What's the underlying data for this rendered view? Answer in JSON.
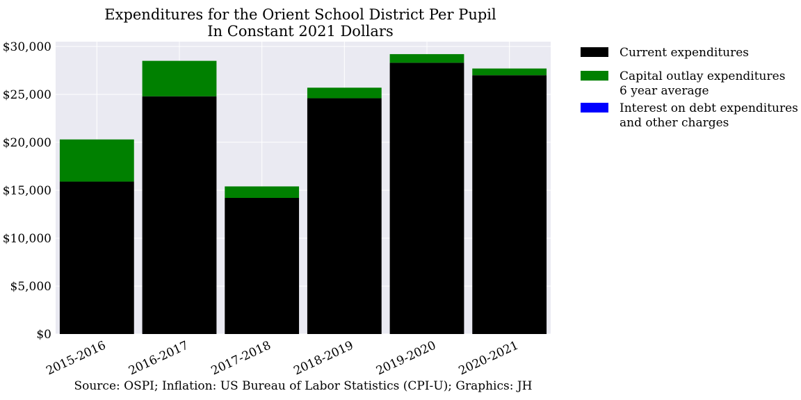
{
  "chart_data": {
    "type": "bar",
    "stacked": true,
    "title_lines": [
      "Expenditures for the Orient School District Per Pupil",
      "In Constant 2021 Dollars"
    ],
    "categories": [
      "2015-2016",
      "2016-2017",
      "2017-2018",
      "2018-2019",
      "2019-2020",
      "2020-2021"
    ],
    "series": [
      {
        "name": "Current expenditures",
        "color": "#000000",
        "values": [
          15900,
          24800,
          14200,
          24600,
          28300,
          27000
        ]
      },
      {
        "name": "Capital outlay expenditures\n6 year average",
        "color": "#008000",
        "values": [
          4400,
          3700,
          1200,
          1100,
          900,
          700
        ]
      },
      {
        "name": "Interest on debt expenditures\nand other charges",
        "color": "#0000ff",
        "values": [
          0,
          0,
          0,
          0,
          0,
          0
        ]
      }
    ],
    "ylim": [
      0,
      30500
    ],
    "yticks": [
      0,
      5000,
      10000,
      15000,
      20000,
      25000,
      30000
    ],
    "ytick_labels": [
      "$0",
      "$5,000",
      "$10,000",
      "$15,000",
      "$20,000",
      "$25,000",
      "$30,000"
    ],
    "grid": true,
    "legend_placement": "outside-right",
    "background_color": "#eaeaf2",
    "source": "Source: OSPI; Inflation: US Bureau of Labor Statistics (CPI-U); Graphics: JH"
  }
}
